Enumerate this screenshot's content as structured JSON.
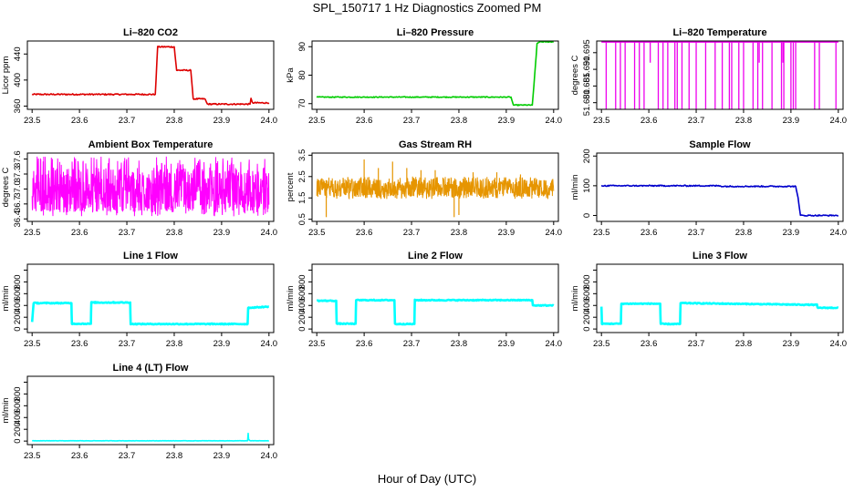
{
  "page": {
    "title": "SPL_150717  1 Hz Diagnostics Zoomed PM",
    "xlabel": "Hour of Day (UTC)"
  },
  "chart_data": [
    {
      "type": "line",
      "title": "Li–820 CO2",
      "ylabel": "Licor ppm",
      "color": "#dd0000",
      "xlim": [
        23.49,
        24.01
      ],
      "ylim": [
        355,
        460
      ],
      "xticks": [
        "23.5",
        "23.6",
        "23.7",
        "23.8",
        "23.9",
        "24.0"
      ],
      "yticks": [
        {
          "v": 360,
          "label": "360"
        },
        {
          "v": 400,
          "label": "400"
        },
        {
          "v": 440,
          "label": "440"
        }
      ],
      "noise": 1,
      "x": [
        23.5,
        23.76,
        23.765,
        23.8,
        23.805,
        23.835,
        23.84,
        23.865,
        23.87,
        23.96,
        23.962,
        23.965,
        24.0
      ],
      "y": [
        378,
        378,
        451,
        451,
        415,
        415,
        371,
        371,
        363,
        363,
        372,
        365,
        365
      ]
    },
    {
      "type": "line",
      "title": "Li–820 Pressure",
      "ylabel": "kPa",
      "color": "#00cc00",
      "xlim": [
        23.49,
        24.01
      ],
      "ylim": [
        68,
        92
      ],
      "xticks": [
        "23.5",
        "23.6",
        "23.7",
        "23.8",
        "23.9",
        "24.0"
      ],
      "yticks": [
        {
          "v": 70,
          "label": "70"
        },
        {
          "v": 80,
          "label": "80"
        },
        {
          "v": 90,
          "label": "90"
        }
      ],
      "noise": 0.15,
      "x": [
        23.5,
        23.91,
        23.915,
        23.955,
        23.96,
        23.965,
        23.97,
        24.0
      ],
      "y": [
        72.3,
        72.3,
        69.5,
        69.5,
        80,
        91,
        91.7,
        91.7
      ]
    },
    {
      "type": "line",
      "title": "Li–820 Temperature",
      "ylabel": "degrees C",
      "color": "#ee00ee",
      "xlim": [
        23.49,
        24.01
      ],
      "ylim": [
        51.678,
        51.6985
      ],
      "xticks": [
        "23.5",
        "23.6",
        "23.7",
        "23.8",
        "23.9",
        "24.0"
      ],
      "yticks": [
        {
          "v": 51.68,
          "label": "51.680"
        },
        {
          "v": 51.685,
          "label": "51.685"
        },
        {
          "v": 51.69,
          "label": "51.690"
        },
        {
          "v": 51.695,
          "label": "51.695"
        }
      ],
      "baseline": 51.6982,
      "low": 51.678,
      "spikes": [
        23.51,
        23.53,
        23.54,
        23.55,
        23.57,
        23.58,
        23.59,
        23.62,
        23.63,
        23.64,
        23.655,
        23.66,
        23.67,
        23.685,
        23.7,
        23.72,
        23.74,
        23.755,
        23.77,
        23.775,
        23.79,
        23.8,
        23.82,
        23.83,
        23.84,
        23.86,
        23.88,
        23.885,
        23.9,
        23.905,
        23.91,
        23.95,
        23.96,
        23.995
      ],
      "mid_spikes": [
        23.6,
        23.83,
        23.88
      ],
      "mid_level": 51.692
    },
    {
      "type": "line",
      "title": "Ambient Box Temperature",
      "ylabel": "degrees C",
      "color": "#ff00ff",
      "xlim": [
        23.49,
        24.01
      ],
      "ylim": [
        36.35,
        37.72
      ],
      "xticks": [
        "23.5",
        "23.6",
        "23.7",
        "23.8",
        "23.9",
        "24.0"
      ],
      "yticks": [
        {
          "v": 36.4,
          "label": "36.4"
        },
        {
          "v": 36.7,
          "label": "36.7"
        },
        {
          "v": 37.0,
          "label": "37.0"
        },
        {
          "v": 37.3,
          "label": "37.3"
        },
        {
          "v": 37.6,
          "label": "37.6"
        }
      ],
      "dense": {
        "center": 36.98,
        "low": 36.45,
        "high": 37.65
      }
    },
    {
      "type": "line",
      "title": "Gas Stream RH",
      "ylabel": "percent",
      "color": "#e69500",
      "xlim": [
        23.49,
        24.01
      ],
      "ylim": [
        0.4,
        3.6
      ],
      "xticks": [
        "23.5",
        "23.6",
        "23.7",
        "23.8",
        "23.9",
        "24.0"
      ],
      "yticks": [
        {
          "v": 0.5,
          "label": "0.5"
        },
        {
          "v": 1.5,
          "label": "1.5"
        },
        {
          "v": 2.5,
          "label": "2.5"
        },
        {
          "v": 3.5,
          "label": "3.5"
        }
      ],
      "dense": {
        "center": 1.95,
        "low": 1.45,
        "high": 2.5
      },
      "outliers": [
        [
          23.52,
          0.6
        ],
        [
          23.6,
          3.3
        ],
        [
          23.63,
          2.9
        ],
        [
          23.66,
          3.2
        ],
        [
          23.69,
          2.9
        ],
        [
          23.72,
          2.8
        ],
        [
          23.75,
          2.8
        ],
        [
          23.79,
          0.6
        ],
        [
          23.8,
          0.7
        ],
        [
          23.83,
          2.7
        ],
        [
          23.88,
          2.7
        ],
        [
          23.93,
          2.6
        ]
      ]
    },
    {
      "type": "line",
      "title": "Sample Flow",
      "ylabel": "ml/min",
      "color": "#0000cc",
      "xlim": [
        23.49,
        24.01
      ],
      "ylim": [
        -20,
        210
      ],
      "xticks": [
        "23.5",
        "23.6",
        "23.7",
        "23.8",
        "23.9",
        "24.0"
      ],
      "yticks": [
        {
          "v": 0,
          "label": "0"
        },
        {
          "v": 100,
          "label": "100"
        },
        {
          "v": 200,
          "label": "200"
        }
      ],
      "noise": 2,
      "x": [
        23.5,
        23.75,
        23.755,
        23.91,
        23.915,
        23.92,
        24.0
      ],
      "y": [
        100,
        100,
        98,
        98,
        60,
        0,
        0
      ]
    },
    {
      "type": "line",
      "title": "Line 1 Flow",
      "ylabel": "ml/min",
      "color": "#00ffff",
      "xlim": [
        23.49,
        24.01
      ],
      "ylim": [
        -60,
        1100
      ],
      "xticks": [
        "23.5",
        "23.6",
        "23.7",
        "23.8",
        "23.9",
        "24.0"
      ],
      "yticks": [
        {
          "v": 0,
          "label": "0"
        },
        {
          "v": 200,
          "label": "200"
        },
        {
          "v": 400,
          "label": "400"
        },
        {
          "v": 600,
          "label": "600"
        },
        {
          "v": 800,
          "label": "800"
        },
        {
          "v": 1000,
          "label": ""
        }
      ],
      "noise": 8,
      "x": [
        23.5,
        23.503,
        23.583,
        23.584,
        23.624,
        23.625,
        23.707,
        23.708,
        23.955,
        23.956,
        24.0
      ],
      "y": [
        120,
        440,
        440,
        90,
        90,
        450,
        450,
        85,
        85,
        360,
        380
      ]
    },
    {
      "type": "line",
      "title": "Line 2 Flow",
      "ylabel": "ml/min",
      "color": "#00ffff",
      "xlim": [
        23.49,
        24.01
      ],
      "ylim": [
        -60,
        1100
      ],
      "xticks": [
        "23.5",
        "23.6",
        "23.7",
        "23.8",
        "23.9",
        "24.0"
      ],
      "yticks": [
        {
          "v": 0,
          "label": "0"
        },
        {
          "v": 200,
          "label": "200"
        },
        {
          "v": 400,
          "label": "400"
        },
        {
          "v": 600,
          "label": "600"
        },
        {
          "v": 800,
          "label": "800"
        },
        {
          "v": 1000,
          "label": ""
        }
      ],
      "noise": 8,
      "x": [
        23.5,
        23.541,
        23.542,
        23.582,
        23.583,
        23.664,
        23.665,
        23.706,
        23.707,
        23.955,
        23.956,
        24.0
      ],
      "y": [
        480,
        480,
        90,
        90,
        490,
        490,
        85,
        85,
        490,
        490,
        400,
        400
      ]
    },
    {
      "type": "line",
      "title": "Line 3 Flow",
      "ylabel": "ml/min",
      "color": "#00ffff",
      "xlim": [
        23.49,
        24.01
      ],
      "ylim": [
        -60,
        1100
      ],
      "xticks": [
        "23.5",
        "23.6",
        "23.7",
        "23.8",
        "23.9",
        "24.0"
      ],
      "yticks": [
        {
          "v": 0,
          "label": "0"
        },
        {
          "v": 200,
          "label": "200"
        },
        {
          "v": 400,
          "label": "400"
        },
        {
          "v": 600,
          "label": "600"
        },
        {
          "v": 800,
          "label": "800"
        },
        {
          "v": 1000,
          "label": ""
        }
      ],
      "noise": 8,
      "x": [
        23.5,
        23.501,
        23.503,
        23.541,
        23.542,
        23.624,
        23.625,
        23.666,
        23.667,
        23.955,
        23.956,
        24.0
      ],
      "y": [
        380,
        90,
        90,
        90,
        430,
        430,
        85,
        85,
        440,
        410,
        360,
        360
      ]
    },
    {
      "type": "line",
      "title": "Line 4 (LT) Flow",
      "ylabel": "ml/min",
      "color": "#00ffff",
      "xlim": [
        23.49,
        24.01
      ],
      "ylim": [
        -60,
        1100
      ],
      "xticks": [
        "23.5",
        "23.6",
        "23.7",
        "23.8",
        "23.9",
        "24.0"
      ],
      "yticks": [
        {
          "v": 0,
          "label": "0"
        },
        {
          "v": 200,
          "label": "200"
        },
        {
          "v": 400,
          "label": "400"
        },
        {
          "v": 600,
          "label": "600"
        },
        {
          "v": 800,
          "label": "800"
        },
        {
          "v": 1000,
          "label": ""
        }
      ],
      "noise": 2,
      "x": [
        23.5,
        23.955,
        23.956,
        23.957,
        23.96,
        24.0
      ],
      "y": [
        5,
        5,
        130,
        30,
        5,
        5
      ]
    }
  ]
}
